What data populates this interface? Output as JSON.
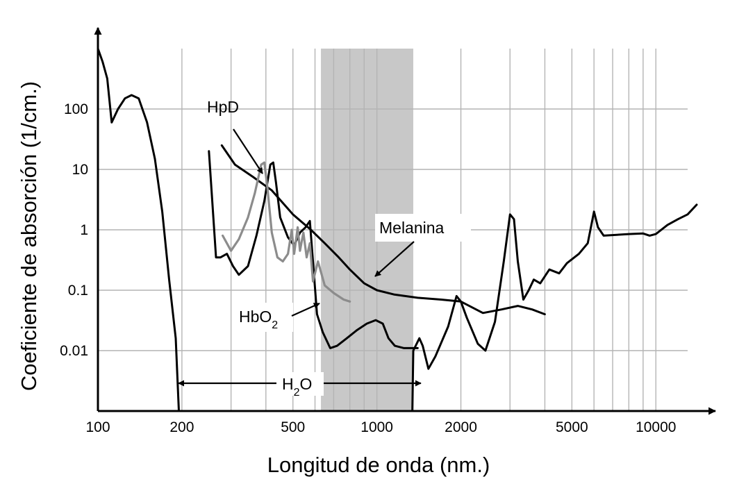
{
  "chart_data": {
    "type": "line",
    "x_scale": "log",
    "y_scale": "log",
    "xlabel": "Longitud de onda (nm.)",
    "ylabel": "Coeficiente de absorción (1/cm.)",
    "xlim": [
      100,
      15000
    ],
    "ylim": [
      0.001,
      1000
    ],
    "x_tick_values": [
      100,
      200,
      500,
      1000,
      2000,
      5000,
      10000
    ],
    "x_tick_labels": [
      "100",
      "200",
      "500",
      "1000",
      "2000",
      "5000",
      "10000"
    ],
    "y_tick_values": [
      100,
      10,
      1,
      0.1,
      0.01
    ],
    "y_tick_labels": [
      "100",
      "10",
      "1",
      "0.1",
      "0.01"
    ],
    "grid": true,
    "shaded_band": {
      "x_from": 630,
      "x_to": 1350,
      "color": "#c8c8c8"
    },
    "series": [
      {
        "name": "H₂O",
        "label_id": "h2o",
        "color": "#000000",
        "points": [
          [
            100,
            1000
          ],
          [
            104,
            600
          ],
          [
            108,
            320
          ],
          [
            112,
            60
          ],
          [
            118,
            100
          ],
          [
            125,
            150
          ],
          [
            132,
            170
          ],
          [
            140,
            150
          ],
          [
            150,
            60
          ],
          [
            160,
            15
          ],
          [
            170,
            2
          ],
          [
            180,
            0.15
          ],
          [
            190,
            0.016
          ],
          [
            195,
            0.001
          ]
        ]
      },
      {
        "name": "H₂O",
        "label_id": "h2o",
        "color": "#000000",
        "points": [
          [
            1340,
            0.001
          ],
          [
            1350,
            0.01
          ],
          [
            1420,
            0.016
          ],
          [
            1460,
            0.012
          ],
          [
            1530,
            0.005
          ],
          [
            1620,
            0.008
          ],
          [
            1800,
            0.025
          ],
          [
            1930,
            0.08
          ],
          [
            2000,
            0.065
          ],
          [
            2100,
            0.035
          ],
          [
            2300,
            0.013
          ],
          [
            2450,
            0.01
          ],
          [
            2650,
            0.03
          ],
          [
            2850,
            0.3
          ],
          [
            3000,
            1.8
          ],
          [
            3100,
            1.5
          ],
          [
            3200,
            0.3
          ],
          [
            3350,
            0.07
          ],
          [
            3500,
            0.1
          ],
          [
            3650,
            0.15
          ],
          [
            3850,
            0.13
          ],
          [
            4150,
            0.22
          ],
          [
            4500,
            0.19
          ],
          [
            4800,
            0.28
          ],
          [
            5300,
            0.4
          ],
          [
            5700,
            0.6
          ],
          [
            6000,
            2.0
          ],
          [
            6200,
            1.1
          ],
          [
            6500,
            0.8
          ],
          [
            8000,
            0.85
          ],
          [
            9000,
            0.87
          ],
          [
            9500,
            0.8
          ],
          [
            10000,
            0.85
          ],
          [
            11000,
            1.2
          ],
          [
            12000,
            1.5
          ],
          [
            13000,
            1.8
          ],
          [
            14000,
            2.6
          ]
        ]
      },
      {
        "name": "HbO₂",
        "label_id": "hbo2",
        "color": "#000000",
        "points": [
          [
            250,
            20
          ],
          [
            265,
            0.35
          ],
          [
            275,
            0.35
          ],
          [
            290,
            0.4
          ],
          [
            305,
            0.25
          ],
          [
            320,
            0.18
          ],
          [
            345,
            0.25
          ],
          [
            370,
            0.8
          ],
          [
            395,
            3.0
          ],
          [
            415,
            12
          ],
          [
            425,
            13
          ],
          [
            435,
            6
          ],
          [
            450,
            1.6
          ],
          [
            480,
            0.75
          ],
          [
            505,
            0.55
          ],
          [
            530,
            0.9
          ],
          [
            555,
            1.1
          ],
          [
            575,
            1.4
          ],
          [
            590,
            0.3
          ],
          [
            610,
            0.04
          ],
          [
            640,
            0.02
          ],
          [
            680,
            0.011
          ],
          [
            720,
            0.012
          ],
          [
            780,
            0.016
          ],
          [
            850,
            0.022
          ],
          [
            920,
            0.028
          ],
          [
            990,
            0.032
          ],
          [
            1050,
            0.028
          ],
          [
            1100,
            0.016
          ],
          [
            1160,
            0.012
          ],
          [
            1250,
            0.011
          ],
          [
            1320,
            0.011
          ],
          [
            1400,
            0.011
          ]
        ]
      },
      {
        "name": "Melanina",
        "label_id": "melanina",
        "color": "#000000",
        "points": [
          [
            278,
            25
          ],
          [
            310,
            12
          ],
          [
            360,
            7.5
          ],
          [
            420,
            4.5
          ],
          [
            500,
            1.8
          ],
          [
            580,
            1.0
          ],
          [
            650,
            0.6
          ],
          [
            730,
            0.35
          ],
          [
            800,
            0.22
          ],
          [
            900,
            0.13
          ],
          [
            1000,
            0.1
          ],
          [
            1150,
            0.085
          ],
          [
            1400,
            0.075
          ],
          [
            1700,
            0.07
          ],
          [
            2000,
            0.065
          ],
          [
            2400,
            0.042
          ],
          [
            2800,
            0.048
          ],
          [
            3200,
            0.055
          ],
          [
            3600,
            0.048
          ],
          [
            4000,
            0.04
          ]
        ]
      },
      {
        "name": "HpD",
        "label_id": "hpd",
        "color": "#8c8c8c",
        "points": [
          [
            280,
            0.8
          ],
          [
            300,
            0.45
          ],
          [
            320,
            0.7
          ],
          [
            345,
            1.6
          ],
          [
            365,
            4
          ],
          [
            385,
            12
          ],
          [
            395,
            13
          ],
          [
            405,
            5
          ],
          [
            420,
            0.9
          ],
          [
            440,
            0.35
          ],
          [
            460,
            0.3
          ],
          [
            480,
            0.4
          ],
          [
            495,
            1.0
          ],
          [
            505,
            0.4
          ],
          [
            520,
            1.1
          ],
          [
            530,
            0.45
          ],
          [
            545,
            0.9
          ],
          [
            560,
            0.35
          ],
          [
            575,
            0.6
          ],
          [
            590,
            0.14
          ],
          [
            615,
            0.3
          ],
          [
            650,
            0.12
          ],
          [
            700,
            0.09
          ],
          [
            760,
            0.07
          ],
          [
            800,
            0.065
          ]
        ]
      }
    ],
    "annotations": [
      {
        "id": "hpd",
        "text": "HpD"
      },
      {
        "id": "melanina",
        "text": "Melanina"
      },
      {
        "id": "hbo2",
        "text": "HbO",
        "sub": "2"
      },
      {
        "id": "h2o",
        "text": "H",
        "sub": "2",
        "after": "O"
      }
    ]
  }
}
